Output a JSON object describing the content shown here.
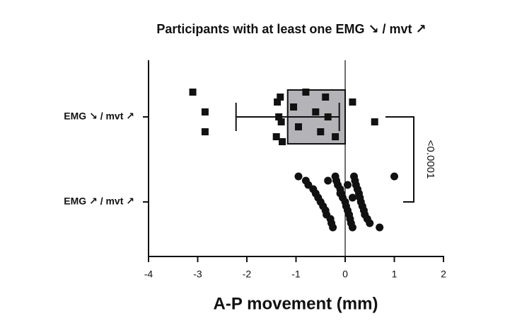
{
  "chart_data": {
    "type": "bar",
    "title": "Participants with at least one EMG ↘ / mvt ↗",
    "xlabel": "A-P movement (mm)",
    "categories": [
      "EMG ↘ / mvt ↗",
      "EMG ↗ / mvt ↗"
    ],
    "values": [
      -1.17,
      null
    ],
    "errors": [
      1.05,
      null
    ],
    "color": "#b3b3b8",
    "points": [
      [
        -3.1,
        -2.85,
        -2.85,
        -1.32,
        -1.35,
        -1.4,
        -1.38,
        -1.3,
        -1.28,
        -1.05,
        -0.95,
        -0.8,
        -0.6,
        -0.5,
        -0.4,
        -0.35,
        -0.2,
        0.15,
        0.6
      ],
      [
        -0.95,
        -0.8,
        -0.75,
        -0.65,
        -0.6,
        -0.55,
        -0.5,
        -0.45,
        -0.4,
        -0.38,
        -0.3,
        -0.28,
        -0.25,
        -0.2,
        -0.18,
        -0.15,
        -0.1,
        -0.08,
        -0.05,
        0.0,
        0.02,
        0.05,
        0.08,
        0.1,
        0.12,
        0.15,
        0.18,
        0.2,
        0.22,
        0.25,
        0.28,
        0.3,
        0.32,
        0.35,
        0.38,
        0.4,
        0.45,
        0.5,
        0.7,
        1.0,
        -0.35,
        0.05,
        0.25,
        -0.1,
        0.15
      ]
    ],
    "point_markers": [
      "square",
      "circle"
    ],
    "annotation": "<0.0001",
    "xlim": [
      -4,
      2
    ],
    "xticks": [
      -4,
      -3,
      -2,
      -1,
      0,
      1,
      2
    ]
  }
}
